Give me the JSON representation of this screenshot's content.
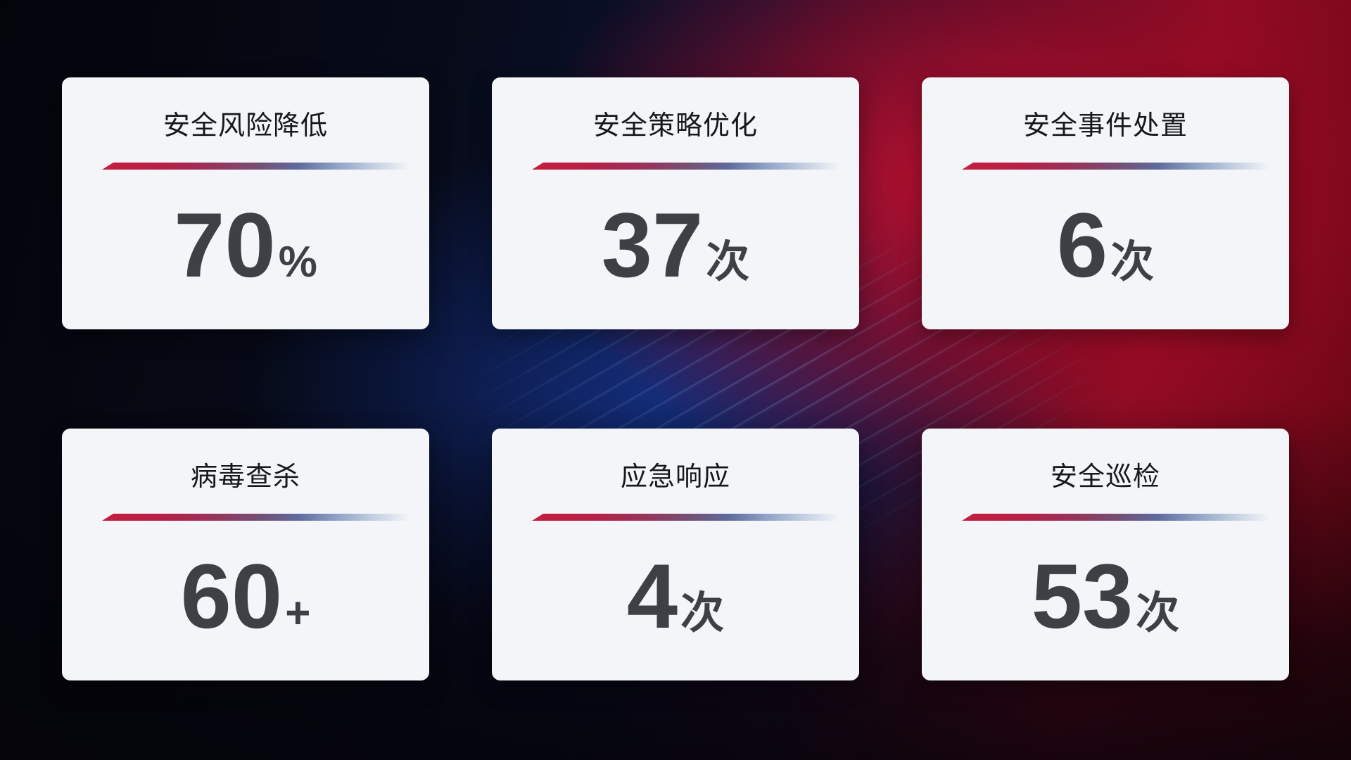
{
  "cards": [
    {
      "title": "安全风险降低",
      "value": "70",
      "suffix": "%"
    },
    {
      "title": "安全策略优化",
      "value": "37",
      "suffix": "次"
    },
    {
      "title": "安全事件处置",
      "value": "6",
      "suffix": "次"
    },
    {
      "title": "病毒查杀",
      "value": "60",
      "suffix": "+"
    },
    {
      "title": "应急响应",
      "value": "4",
      "suffix": "次"
    },
    {
      "title": "安全巡检",
      "value": "53",
      "suffix": "次"
    }
  ],
  "colors": {
    "bg_dark": "#05060e",
    "bg_navy": "#0b1233",
    "bg_blue_glow": "#16328c",
    "bg_red": "#b50e2c",
    "card_bg": "#f4f5f9",
    "card_title": "#17181c",
    "card_value": "#3d4045",
    "divider_red": "#c41e3d",
    "divider_blue": "#bcc9de"
  }
}
